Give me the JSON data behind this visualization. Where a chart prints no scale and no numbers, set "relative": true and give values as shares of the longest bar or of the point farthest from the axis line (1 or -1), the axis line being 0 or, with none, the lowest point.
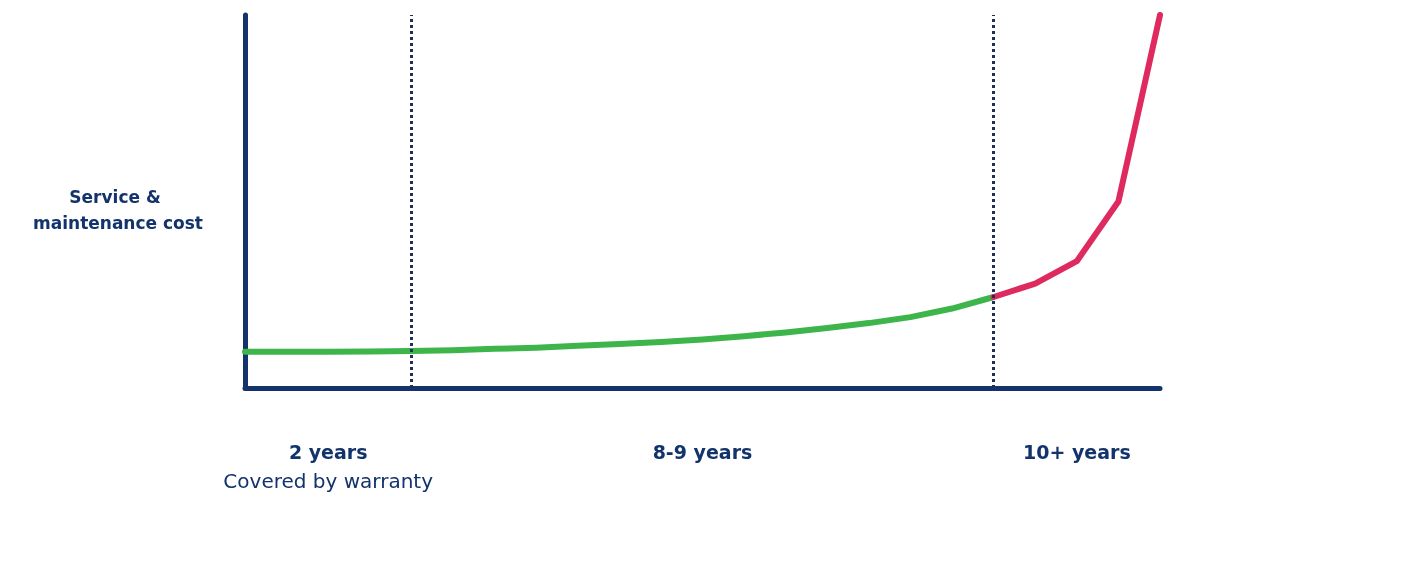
{
  "chart_data": {
    "type": "line",
    "relative": true,
    "ylabel": "Service & maintenance cost",
    "marker": "none",
    "line_style": "solid",
    "categories": [
      null,
      null,
      null,
      null,
      null,
      null,
      null,
      null,
      null,
      null,
      null,
      null,
      null,
      null,
      null,
      null,
      null,
      null,
      null,
      null,
      null,
      null,
      null
    ],
    "series": [
      {
        "color": "#3db54a",
        "values": [
          0.097,
          0.097,
          0.097,
          0.098,
          0.099,
          0.101,
          0.105,
          0.108,
          0.113,
          0.118,
          0.123,
          0.13,
          0.139,
          0.149,
          0.161,
          0.174,
          0.19,
          0.213,
          0.244,
          null,
          null,
          null,
          null
        ]
      },
      {
        "color": "#de2a5e",
        "values": [
          null,
          null,
          null,
          null,
          null,
          null,
          null,
          null,
          null,
          null,
          null,
          null,
          null,
          null,
          null,
          null,
          null,
          null,
          0.244,
          0.28,
          0.34,
          0.5,
          1
        ]
      }
    ],
    "annotations": [
      "2 years",
      "8-9 years",
      "10+ years",
      "Covered by warranty"
    ]
  }
}
